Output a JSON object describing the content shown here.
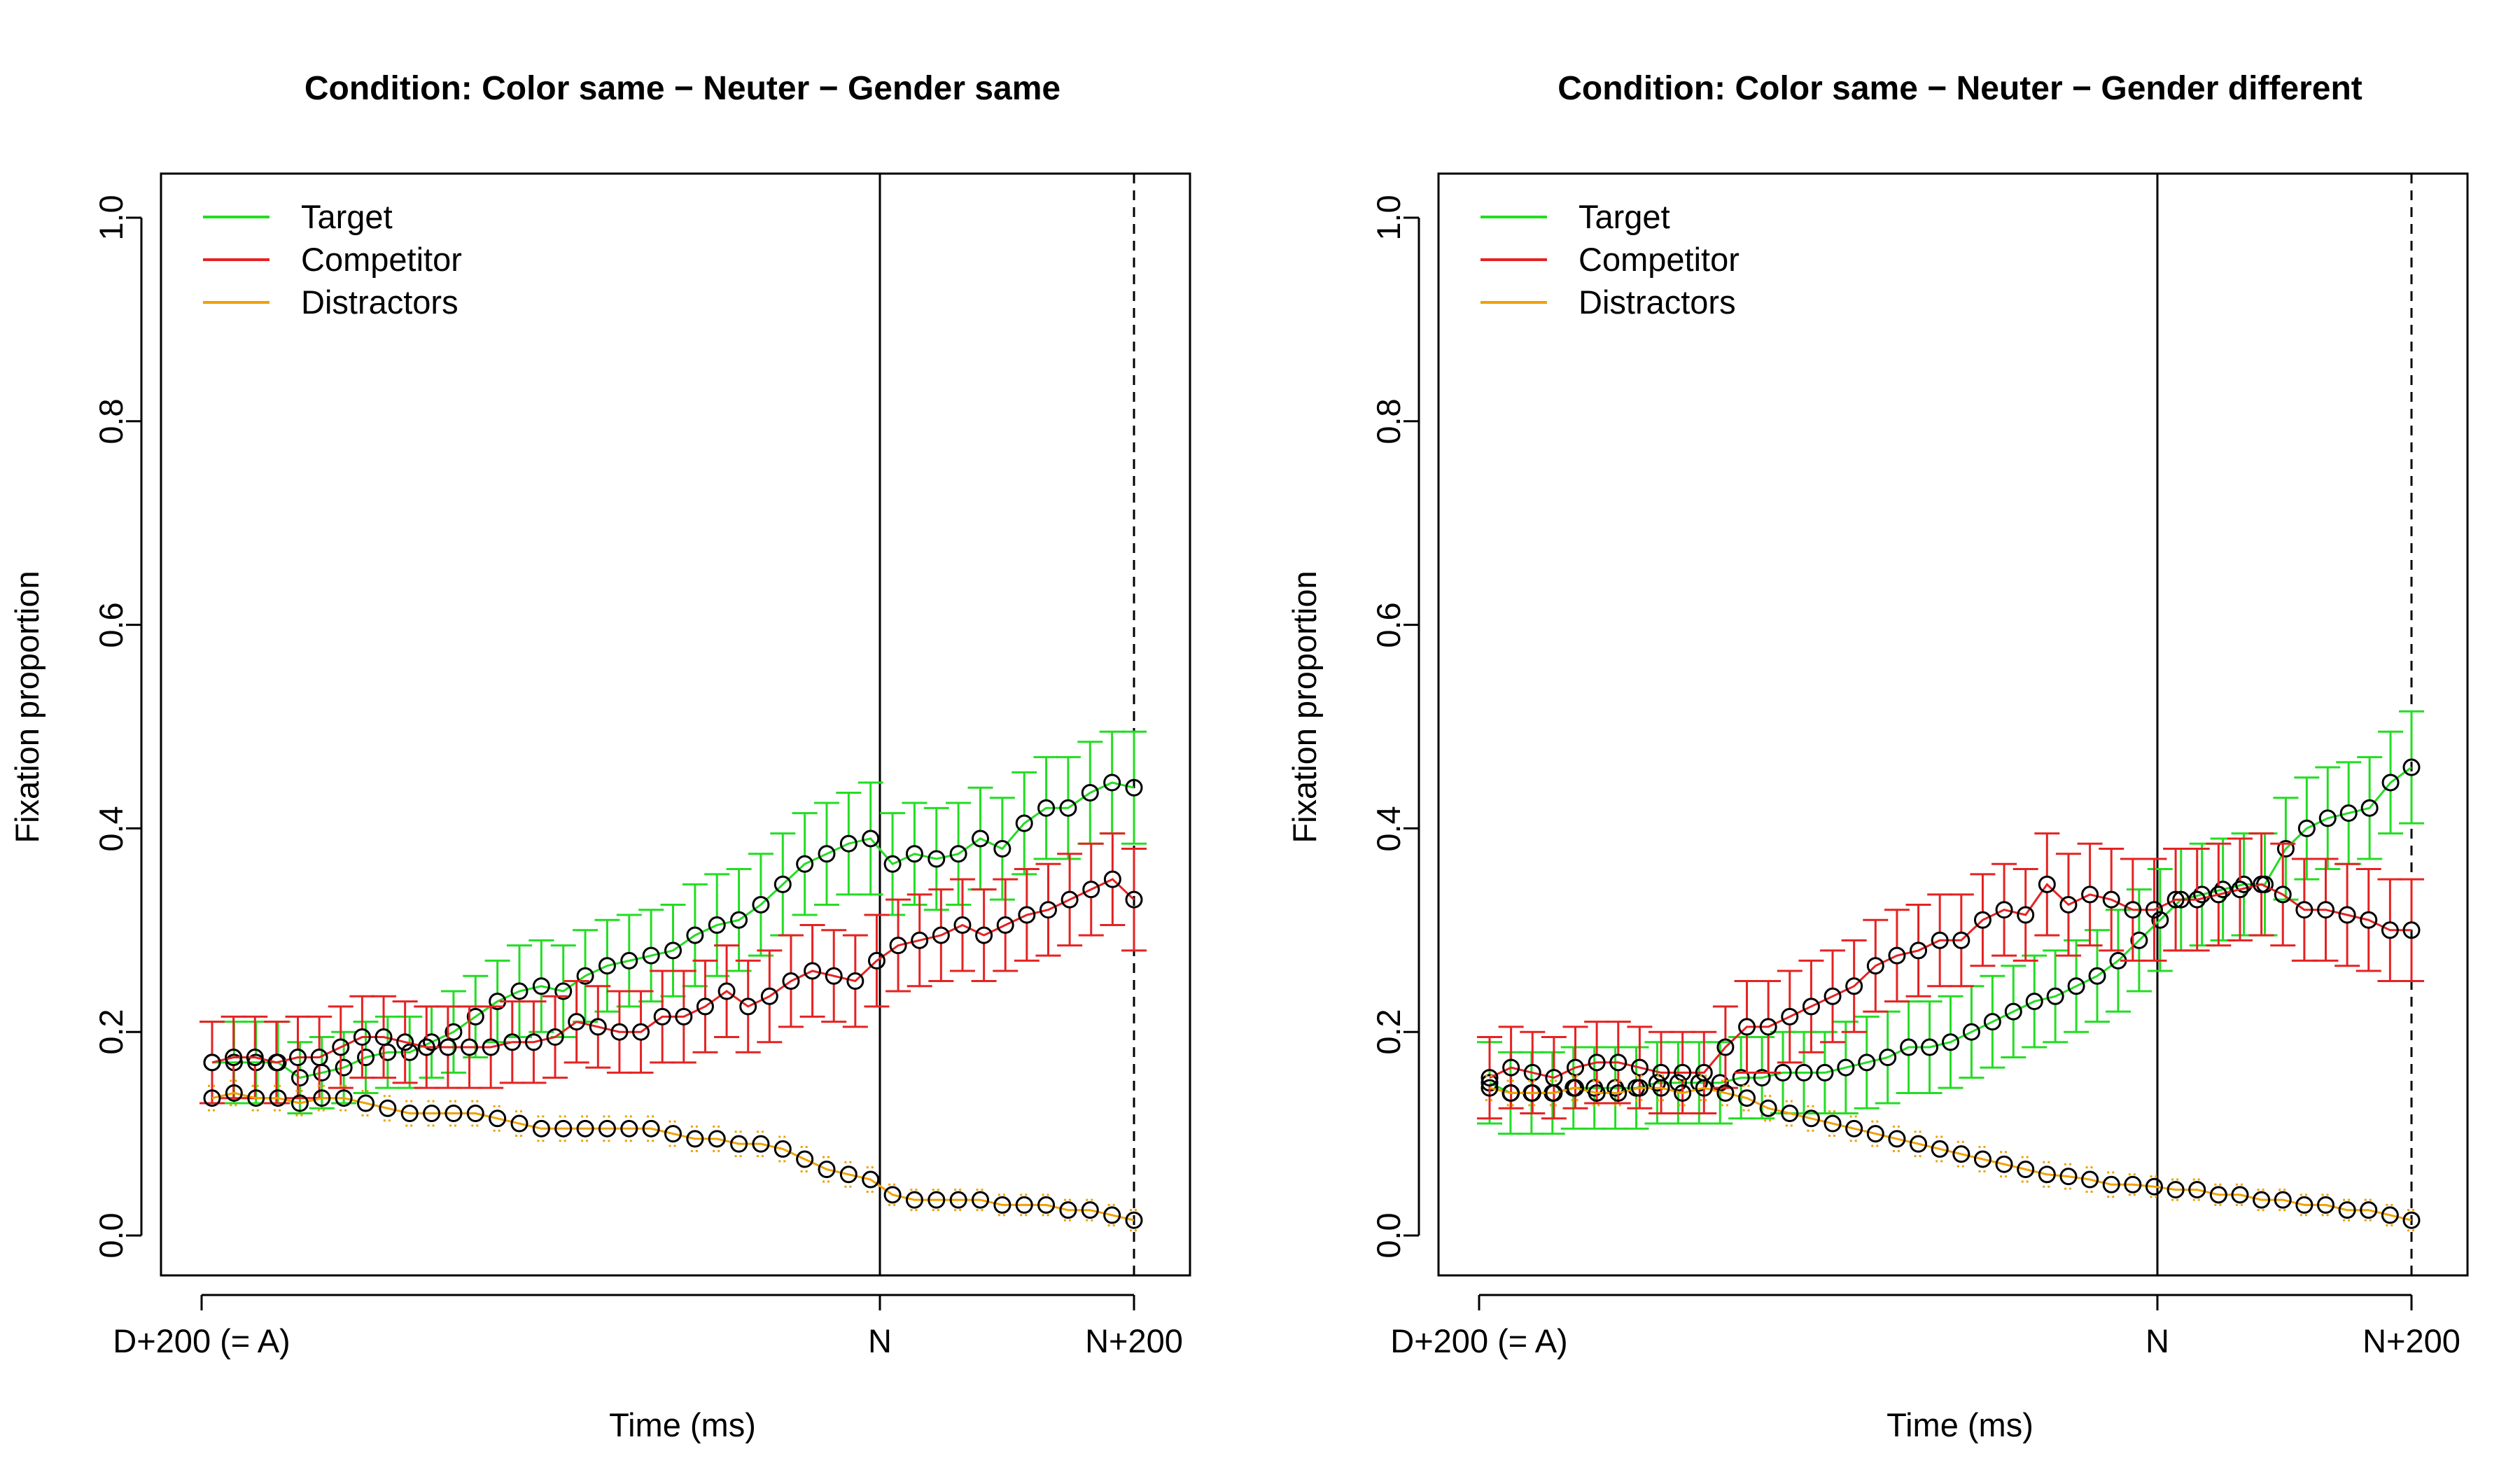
{
  "colors": {
    "target": "#22dd22",
    "competitor": "#e52222",
    "distractors": "#f0a000",
    "points": "#000000"
  },
  "chart_data": [
    {
      "type": "line",
      "title": "Condition: Color same − Neuter − Gender same",
      "xlabel": "Time (ms)",
      "ylabel": "Fixation proportion",
      "ylim": [
        0,
        1
      ],
      "yticks": [
        "0.0",
        "0.2",
        "0.4",
        "0.6",
        "0.8",
        "1.0"
      ],
      "xticks": [
        "D+200 (= A)",
        "N",
        "N+200"
      ],
      "grid": false,
      "legend_position": "top-left",
      "markers": [
        "N",
        "N+200"
      ],
      "series": [
        {
          "name": "Target",
          "color_key": "target",
          "values": [
            0.17,
            0.17,
            0.17,
            0.17,
            0.155,
            0.16,
            0.165,
            0.175,
            0.18,
            0.18,
            0.19,
            0.2,
            0.215,
            0.23,
            0.24,
            0.245,
            0.24,
            0.255,
            0.265,
            0.27,
            0.275,
            0.28,
            0.295,
            0.305,
            0.31,
            0.325,
            0.345,
            0.365,
            0.375,
            0.385,
            0.39,
            0.365,
            0.375,
            0.37,
            0.375,
            0.39,
            0.38,
            0.405,
            0.42,
            0.42,
            0.435,
            0.445,
            0.44
          ],
          "err": [
            0.04,
            0.04,
            0.04,
            0.04,
            0.035,
            0.035,
            0.035,
            0.035,
            0.035,
            0.035,
            0.035,
            0.04,
            0.04,
            0.04,
            0.045,
            0.045,
            0.045,
            0.045,
            0.045,
            0.045,
            0.045,
            0.045,
            0.05,
            0.05,
            0.05,
            0.05,
            0.05,
            0.05,
            0.05,
            0.05,
            0.055,
            0.05,
            0.05,
            0.05,
            0.05,
            0.05,
            0.05,
            0.05,
            0.05,
            0.05,
            0.05,
            0.05,
            0.055
          ]
        },
        {
          "name": "Competitor",
          "color_key": "competitor",
          "values": [
            0.17,
            0.175,
            0.175,
            0.17,
            0.175,
            0.175,
            0.185,
            0.195,
            0.195,
            0.19,
            0.185,
            0.185,
            0.185,
            0.185,
            0.19,
            0.19,
            0.195,
            0.21,
            0.205,
            0.2,
            0.2,
            0.215,
            0.215,
            0.225,
            0.24,
            0.225,
            0.235,
            0.25,
            0.26,
            0.255,
            0.25,
            0.27,
            0.285,
            0.29,
            0.295,
            0.305,
            0.295,
            0.305,
            0.315,
            0.32,
            0.33,
            0.34,
            0.35,
            0.33
          ],
          "err": [
            0.04,
            0.04,
            0.04,
            0.04,
            0.04,
            0.04,
            0.04,
            0.04,
            0.04,
            0.04,
            0.04,
            0.04,
            0.04,
            0.04,
            0.04,
            0.04,
            0.04,
            0.04,
            0.04,
            0.04,
            0.04,
            0.045,
            0.045,
            0.045,
            0.045,
            0.045,
            0.045,
            0.045,
            0.045,
            0.045,
            0.045,
            0.045,
            0.045,
            0.045,
            0.045,
            0.045,
            0.045,
            0.045,
            0.045,
            0.045,
            0.045,
            0.045,
            0.045,
            0.05
          ]
        },
        {
          "name": "Distractors",
          "color_key": "distractors",
          "values": [
            0.135,
            0.14,
            0.135,
            0.135,
            0.13,
            0.135,
            0.135,
            0.13,
            0.125,
            0.12,
            0.12,
            0.12,
            0.12,
            0.115,
            0.11,
            0.105,
            0.105,
            0.105,
            0.105,
            0.105,
            0.105,
            0.1,
            0.095,
            0.095,
            0.09,
            0.09,
            0.085,
            0.075,
            0.065,
            0.06,
            0.055,
            0.04,
            0.035,
            0.035,
            0.035,
            0.035,
            0.03,
            0.03,
            0.03,
            0.025,
            0.025,
            0.02,
            0.015
          ],
          "err": [
            0.012,
            0.012,
            0.012,
            0.012,
            0.012,
            0.012,
            0.012,
            0.012,
            0.012,
            0.012,
            0.012,
            0.012,
            0.012,
            0.012,
            0.012,
            0.012,
            0.012,
            0.012,
            0.012,
            0.012,
            0.012,
            0.012,
            0.012,
            0.012,
            0.012,
            0.012,
            0.012,
            0.012,
            0.012,
            0.012,
            0.012,
            0.01,
            0.01,
            0.01,
            0.01,
            0.01,
            0.01,
            0.01,
            0.01,
            0.01,
            0.01,
            0.01,
            0.01
          ]
        }
      ]
    },
    {
      "type": "line",
      "title": "Condition: Color same − Neuter − Gender different",
      "xlabel": "Time (ms)",
      "ylabel": "Fixation proportion",
      "ylim": [
        0,
        1
      ],
      "yticks": [
        "0.0",
        "0.2",
        "0.4",
        "0.6",
        "0.8",
        "1.0"
      ],
      "xticks": [
        "D+200 (= A)",
        "N",
        "N+200"
      ],
      "grid": false,
      "legend_position": "top-left",
      "markers": [
        "N",
        "N+200"
      ],
      "series": [
        {
          "name": "Target",
          "color_key": "target",
          "values": [
            0.15,
            0.14,
            0.14,
            0.14,
            0.145,
            0.145,
            0.145,
            0.145,
            0.15,
            0.15,
            0.15,
            0.15,
            0.155,
            0.155,
            0.16,
            0.16,
            0.16,
            0.165,
            0.17,
            0.175,
            0.185,
            0.185,
            0.19,
            0.2,
            0.21,
            0.22,
            0.23,
            0.235,
            0.245,
            0.255,
            0.27,
            0.29,
            0.31,
            0.33,
            0.335,
            0.34,
            0.345,
            0.345,
            0.38,
            0.4,
            0.41,
            0.415,
            0.42,
            0.445,
            0.46
          ],
          "err": [
            0.04,
            0.04,
            0.04,
            0.04,
            0.04,
            0.04,
            0.04,
            0.04,
            0.04,
            0.04,
            0.04,
            0.04,
            0.04,
            0.04,
            0.04,
            0.04,
            0.04,
            0.045,
            0.045,
            0.045,
            0.045,
            0.045,
            0.045,
            0.045,
            0.045,
            0.045,
            0.045,
            0.045,
            0.045,
            0.045,
            0.05,
            0.05,
            0.05,
            0.05,
            0.05,
            0.05,
            0.05,
            0.05,
            0.05,
            0.05,
            0.05,
            0.05,
            0.05,
            0.05,
            0.055
          ]
        },
        {
          "name": "Competitor",
          "color_key": "competitor",
          "values": [
            0.155,
            0.165,
            0.16,
            0.155,
            0.165,
            0.17,
            0.17,
            0.165,
            0.16,
            0.16,
            0.16,
            0.185,
            0.205,
            0.205,
            0.215,
            0.225,
            0.235,
            0.245,
            0.265,
            0.275,
            0.28,
            0.29,
            0.29,
            0.31,
            0.32,
            0.315,
            0.345,
            0.325,
            0.335,
            0.33,
            0.32,
            0.32,
            0.33,
            0.33,
            0.335,
            0.34,
            0.345,
            0.335,
            0.32,
            0.32,
            0.315,
            0.31,
            0.3,
            0.3
          ],
          "err": [
            0.04,
            0.04,
            0.04,
            0.04,
            0.04,
            0.04,
            0.04,
            0.04,
            0.04,
            0.04,
            0.04,
            0.04,
            0.045,
            0.045,
            0.045,
            0.045,
            0.045,
            0.045,
            0.045,
            0.045,
            0.045,
            0.045,
            0.045,
            0.045,
            0.045,
            0.045,
            0.05,
            0.05,
            0.05,
            0.05,
            0.05,
            0.05,
            0.05,
            0.05,
            0.05,
            0.05,
            0.05,
            0.05,
            0.05,
            0.05,
            0.05,
            0.05,
            0.05,
            0.05
          ]
        },
        {
          "name": "Distractors",
          "color_key": "distractors",
          "values": [
            0.145,
            0.14,
            0.14,
            0.14,
            0.145,
            0.14,
            0.14,
            0.145,
            0.145,
            0.14,
            0.145,
            0.14,
            0.135,
            0.125,
            0.12,
            0.115,
            0.11,
            0.105,
            0.1,
            0.095,
            0.09,
            0.085,
            0.08,
            0.075,
            0.07,
            0.065,
            0.06,
            0.058,
            0.055,
            0.05,
            0.05,
            0.048,
            0.045,
            0.045,
            0.04,
            0.04,
            0.035,
            0.035,
            0.03,
            0.03,
            0.025,
            0.025,
            0.02,
            0.015
          ],
          "err": [
            0.012,
            0.012,
            0.012,
            0.012,
            0.012,
            0.012,
            0.012,
            0.012,
            0.012,
            0.012,
            0.012,
            0.012,
            0.012,
            0.012,
            0.012,
            0.012,
            0.012,
            0.012,
            0.012,
            0.012,
            0.012,
            0.012,
            0.012,
            0.012,
            0.012,
            0.012,
            0.012,
            0.012,
            0.012,
            0.012,
            0.01,
            0.01,
            0.01,
            0.01,
            0.01,
            0.01,
            0.01,
            0.01,
            0.01,
            0.01,
            0.01,
            0.01,
            0.01,
            0.01
          ]
        }
      ]
    }
  ]
}
